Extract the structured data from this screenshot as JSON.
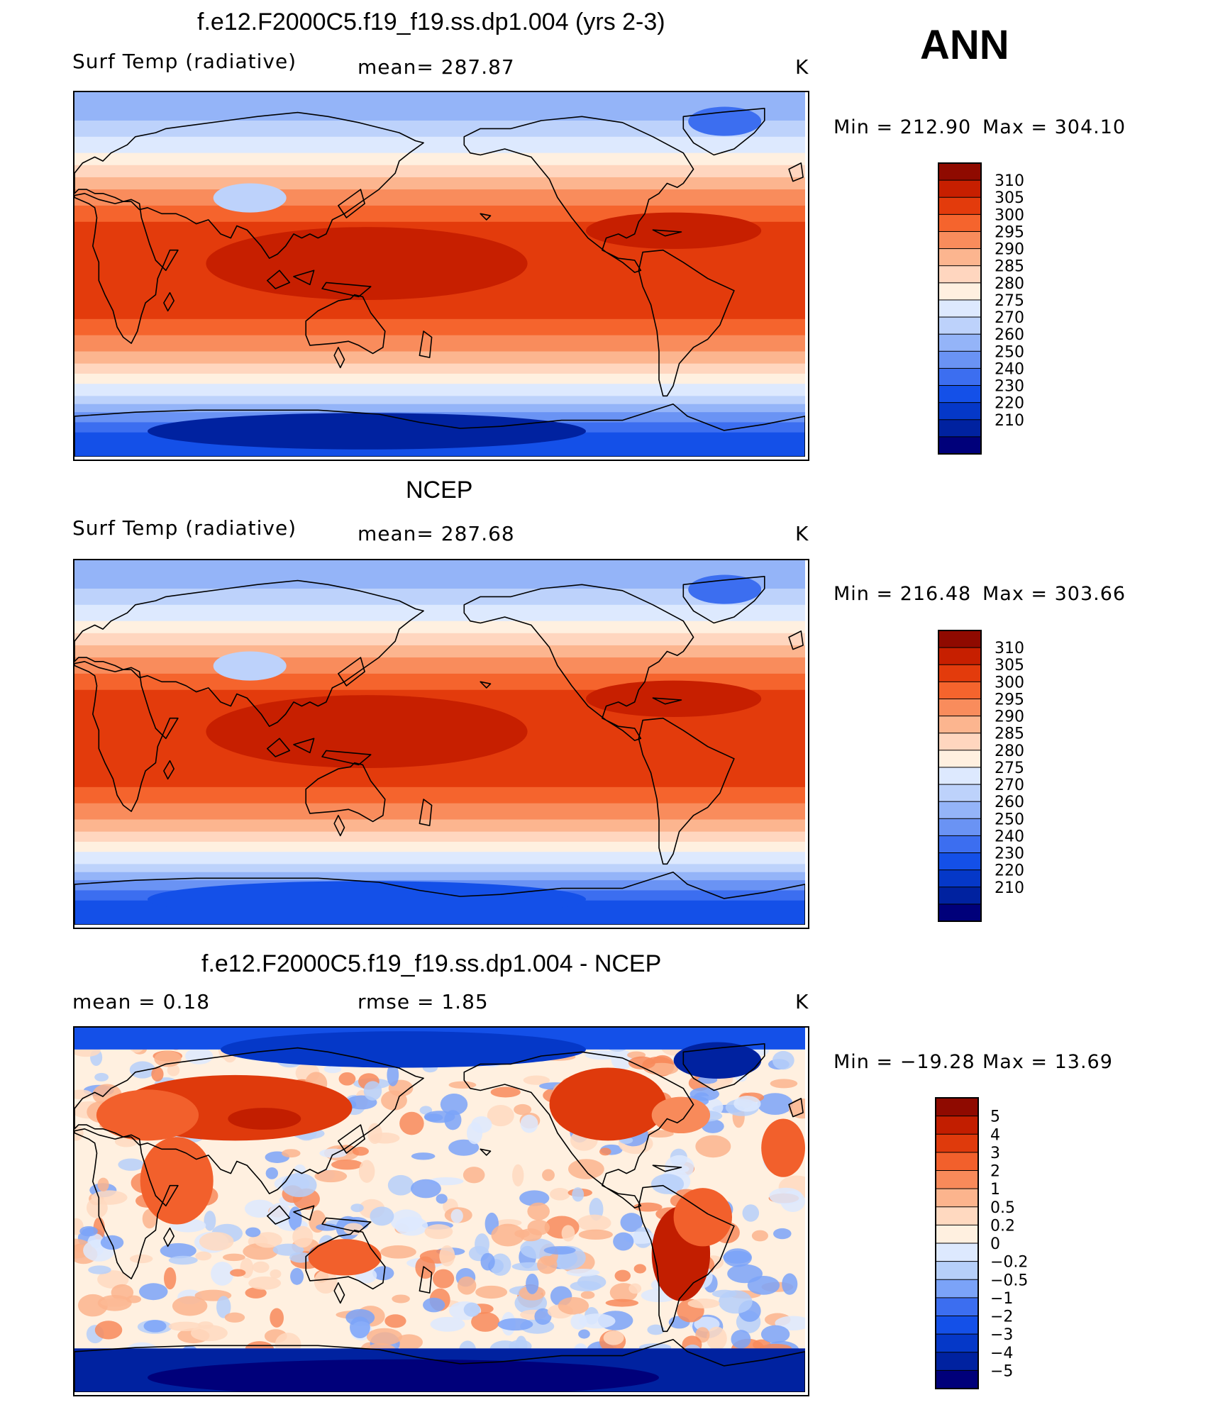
{
  "season": "ANN",
  "colors": {
    "abs": [
      "#00007a",
      "#0022a0",
      "#0538c8",
      "#1450e8",
      "#3c6ef0",
      "#6a93f4",
      "#94b4f8",
      "#bdd2fb",
      "#dde9fe",
      "#fff0e0",
      "#ffd6bf",
      "#fcb58f",
      "#f98c5c",
      "#f5642d",
      "#e33b0c",
      "#c71f00",
      "#8f0a00"
    ],
    "diff": [
      "#00007a",
      "#0022a0",
      "#0538c8",
      "#1450e8",
      "#3c6ef0",
      "#7ba3f8",
      "#b6cff9",
      "#dde9fe",
      "#fff0e0",
      "#ffd9c0",
      "#fcb48d",
      "#f88a5a",
      "#f2602c",
      "#df3a0c",
      "#c21e00",
      "#8f0a00"
    ],
    "coast": "#000000"
  },
  "panels": [
    {
      "title": "f.e12.F2000C5.f19_f19.ss.dp1.004 (yrs 2-3)",
      "left_text": "Surf Temp (radiative)",
      "center_text": "mean=  287.87",
      "units": "K",
      "min_label": "Min  =  212.90",
      "max_label": "Max  =  304.10",
      "colorbar_labels": [
        "310",
        "305",
        "300",
        "295",
        "290",
        "285",
        "280",
        "275",
        "270",
        "260",
        "250",
        "240",
        "230",
        "220",
        "210"
      ]
    },
    {
      "title": "NCEP",
      "left_text": "Surf Temp (radiative)",
      "center_text": "mean=  287.68",
      "units": "K",
      "min_label": "Min  =  216.48",
      "max_label": "Max  =  303.66",
      "colorbar_labels": [
        "310",
        "305",
        "300",
        "295",
        "290",
        "285",
        "280",
        "275",
        "270",
        "260",
        "250",
        "240",
        "230",
        "220",
        "210"
      ]
    },
    {
      "title": "f.e12.F2000C5.f19_f19.ss.dp1.004 - NCEP",
      "left_text": "mean =     0.18",
      "center_text": "rmse =     1.85",
      "units": "K",
      "min_label": "Min  =  −19.28",
      "max_label": "Max  =    13.69",
      "colorbar_labels": [
        "5",
        "4",
        "3",
        "2",
        "1",
        "0.5",
        "0.2",
        "0",
        "−0.2",
        "−0.5",
        "−1",
        "−2",
        "−3",
        "−4",
        "−5"
      ]
    }
  ]
}
